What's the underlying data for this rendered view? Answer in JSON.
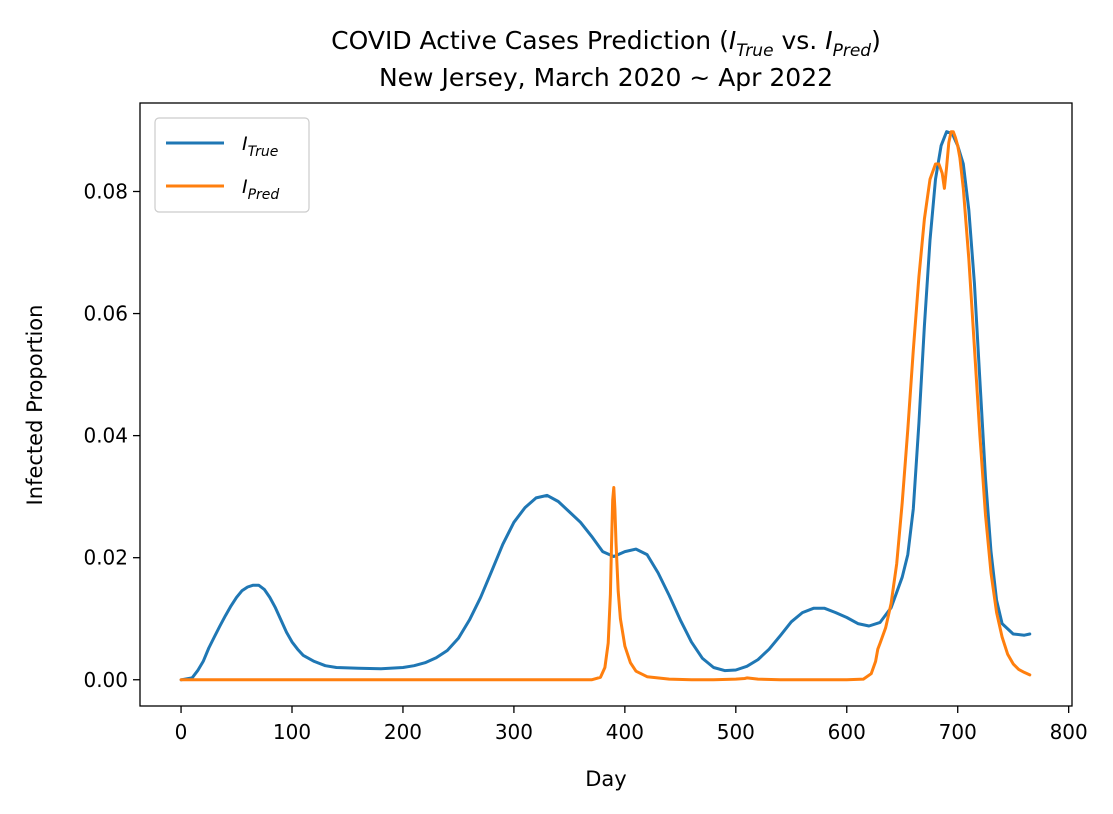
{
  "chart_data": {
    "type": "line",
    "title_line1_main": "COVID Active Cases Prediction (",
    "title_line1_var1": "I",
    "title_line1_sub1": "True",
    "title_line1_mid": " vs. ",
    "title_line1_var2": "I",
    "title_line1_sub2": "Pred",
    "title_line1_end": ")",
    "title_line2": "New Jersey, March 2020 ~ Apr 2022",
    "xlabel": "Day",
    "ylabel": "Infected Proportion",
    "xlim": [
      -37,
      803
    ],
    "ylim": [
      -0.0043,
      0.0945
    ],
    "xticks": [
      0,
      100,
      200,
      300,
      400,
      500,
      600,
      700,
      800
    ],
    "xtick_labels": [
      "0",
      "100",
      "200",
      "300",
      "400",
      "500",
      "600",
      "700",
      "800"
    ],
    "yticks": [
      0.0,
      0.02,
      0.04,
      0.06,
      0.08
    ],
    "ytick_labels": [
      "0.00",
      "0.02",
      "0.04",
      "0.06",
      "0.08"
    ],
    "grid": false,
    "legend_position": "top-left",
    "series": [
      {
        "name": "I_True",
        "legend_var": "I",
        "legend_sub": "True",
        "color": "#1f77b4",
        "x": [
          0,
          10,
          15,
          20,
          25,
          30,
          35,
          40,
          45,
          50,
          55,
          60,
          65,
          70,
          75,
          80,
          85,
          90,
          95,
          100,
          105,
          110,
          120,
          130,
          140,
          160,
          180,
          200,
          210,
          220,
          230,
          240,
          250,
          260,
          270,
          280,
          290,
          300,
          310,
          320,
          330,
          340,
          350,
          360,
          370,
          380,
          390,
          400,
          410,
          420,
          430,
          440,
          450,
          460,
          470,
          480,
          490,
          500,
          510,
          520,
          530,
          540,
          550,
          560,
          570,
          580,
          590,
          600,
          610,
          620,
          630,
          640,
          650,
          655,
          660,
          665,
          670,
          675,
          680,
          685,
          690,
          695,
          700,
          705,
          710,
          715,
          720,
          725,
          730,
          735,
          740,
          750,
          760,
          765
        ],
        "y": [
          0.0,
          0.0003,
          0.0015,
          0.003,
          0.0052,
          0.007,
          0.0088,
          0.0105,
          0.0121,
          0.0135,
          0.0146,
          0.0152,
          0.0155,
          0.0155,
          0.0148,
          0.0135,
          0.0118,
          0.0098,
          0.0078,
          0.0062,
          0.005,
          0.004,
          0.003,
          0.0023,
          0.002,
          0.0019,
          0.0018,
          0.002,
          0.0023,
          0.0028,
          0.0036,
          0.0048,
          0.0068,
          0.0098,
          0.0135,
          0.0178,
          0.0222,
          0.0258,
          0.0282,
          0.0298,
          0.0302,
          0.0292,
          0.0275,
          0.0258,
          0.0235,
          0.021,
          0.0202,
          0.021,
          0.0214,
          0.0205,
          0.0175,
          0.0138,
          0.0098,
          0.0062,
          0.0035,
          0.002,
          0.0015,
          0.0016,
          0.0022,
          0.0033,
          0.005,
          0.0072,
          0.0095,
          0.011,
          0.0117,
          0.0117,
          0.011,
          0.0102,
          0.0092,
          0.0088,
          0.0094,
          0.0118,
          0.0168,
          0.0205,
          0.028,
          0.042,
          0.058,
          0.072,
          0.082,
          0.0875,
          0.0898,
          0.0895,
          0.0875,
          0.0845,
          0.077,
          0.065,
          0.049,
          0.033,
          0.021,
          0.013,
          0.0092,
          0.0075,
          0.0073,
          0.0075
        ]
      },
      {
        "name": "I_Pred",
        "legend_var": "I",
        "legend_sub": "Pred",
        "color": "#ff7f0e",
        "x": [
          0,
          100,
          200,
          300,
          370,
          378,
          382,
          385,
          387,
          388,
          389,
          390,
          391,
          392,
          394,
          396,
          400,
          405,
          410,
          420,
          440,
          460,
          480,
          500,
          508,
          510,
          515,
          520,
          540,
          560,
          580,
          600,
          615,
          622,
          626,
          628,
          630,
          635,
          640,
          645,
          650,
          655,
          660,
          665,
          670,
          675,
          680,
          683,
          686,
          688,
          690,
          692,
          694,
          696,
          698,
          700,
          702,
          705,
          710,
          715,
          720,
          725,
          730,
          735,
          740,
          745,
          750,
          755,
          760,
          765
        ],
        "y": [
          0.0,
          0.0,
          0.0,
          0.0,
          0.0,
          0.0004,
          0.002,
          0.006,
          0.014,
          0.022,
          0.0295,
          0.0315,
          0.028,
          0.0225,
          0.0145,
          0.01,
          0.0055,
          0.0028,
          0.0014,
          0.0005,
          0.0001,
          0.0,
          0.0,
          0.0001,
          0.0002,
          0.0003,
          0.0002,
          0.0001,
          0.0,
          0.0,
          0.0,
          0.0,
          0.0001,
          0.001,
          0.003,
          0.005,
          0.006,
          0.0085,
          0.0125,
          0.019,
          0.029,
          0.041,
          0.054,
          0.066,
          0.0755,
          0.082,
          0.0845,
          0.0845,
          0.083,
          0.0805,
          0.084,
          0.088,
          0.0898,
          0.0898,
          0.0888,
          0.0875,
          0.0855,
          0.0805,
          0.069,
          0.0545,
          0.04,
          0.027,
          0.0175,
          0.011,
          0.007,
          0.0042,
          0.0026,
          0.0017,
          0.0012,
          0.0008
        ]
      }
    ]
  },
  "colors": {
    "true_series": "#1f77b4",
    "pred_series": "#ff7f0e",
    "axes": "#000000",
    "legend_border": "#cccccc"
  }
}
